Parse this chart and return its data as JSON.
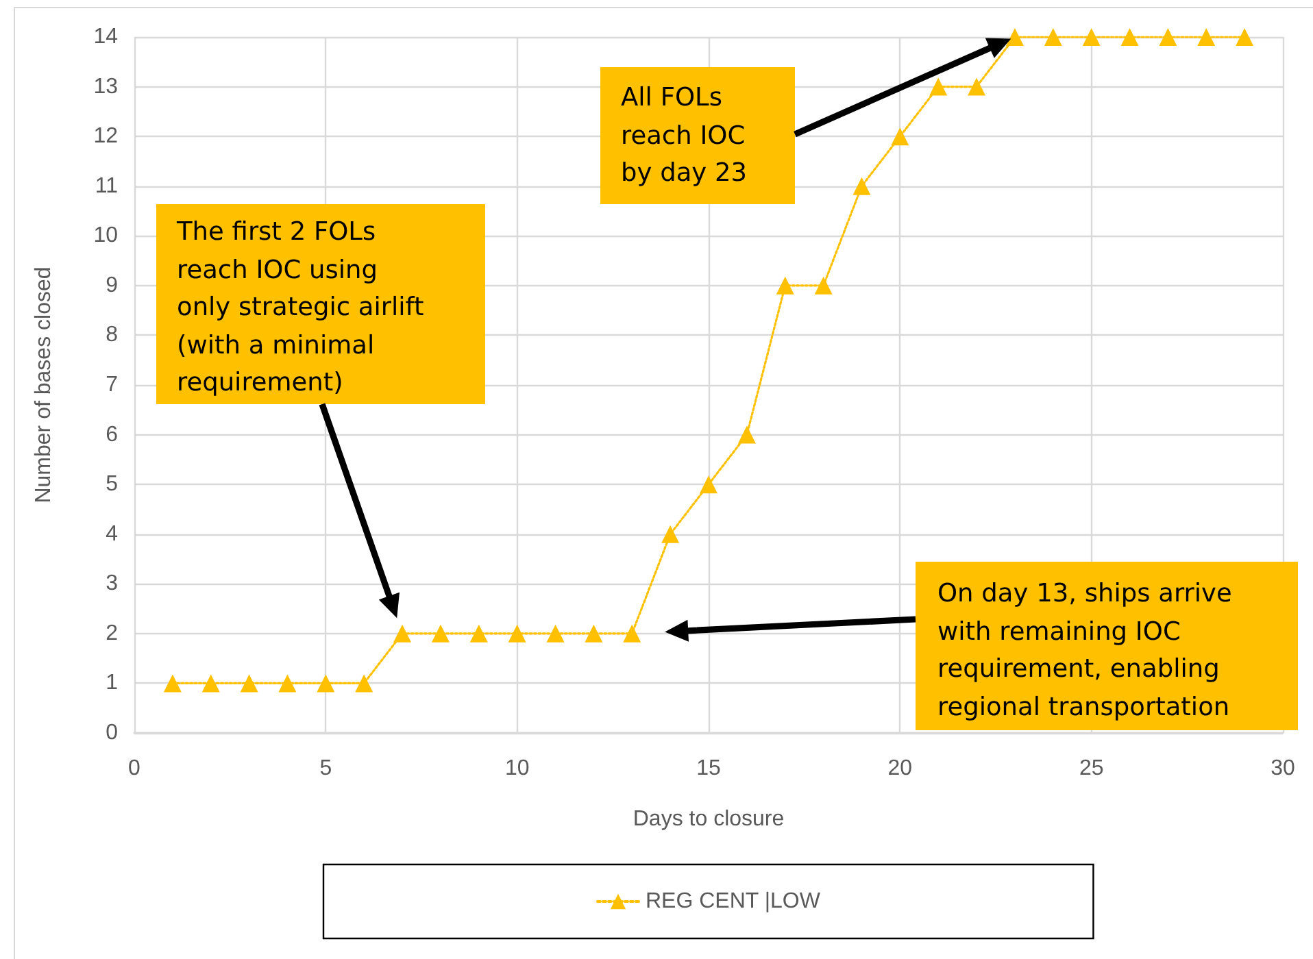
{
  "chart_data": {
    "type": "line",
    "xlabel": "Days to closure",
    "ylabel": "Number of bases closed",
    "x": [
      1,
      2,
      3,
      4,
      5,
      6,
      7,
      8,
      9,
      10,
      11,
      12,
      13,
      14,
      15,
      16,
      17,
      18,
      19,
      20,
      21,
      22,
      23,
      24,
      25,
      26,
      27,
      28,
      29
    ],
    "series": [
      {
        "name": "REG CENT |LOW",
        "color": "#ffc000",
        "values": [
          1,
          1,
          1,
          1,
          1,
          1,
          2,
          2,
          2,
          2,
          2,
          2,
          2,
          4,
          5,
          6,
          9,
          9,
          11,
          12,
          13,
          13,
          14,
          14,
          14,
          14,
          14,
          14,
          14
        ]
      }
    ],
    "xlim": [
      0,
      30
    ],
    "xticks": [
      0,
      5,
      10,
      15,
      20,
      25,
      30
    ],
    "ylim": [
      0,
      14
    ],
    "yticks": [
      0,
      1,
      2,
      3,
      4,
      5,
      6,
      7,
      8,
      9,
      10,
      11,
      12,
      13,
      14
    ],
    "grid": true,
    "legend": "bottom",
    "marker": "triangle",
    "line_style": "dotted",
    "annotations": [
      "All FOLs reach IOC by day 23",
      "The first 2 FOLs reach IOC using only strategic airlift (with a minimal requirement)",
      "On day 13, ships arrive with remaining IOC requirement, enabling regional transportation"
    ]
  }
}
